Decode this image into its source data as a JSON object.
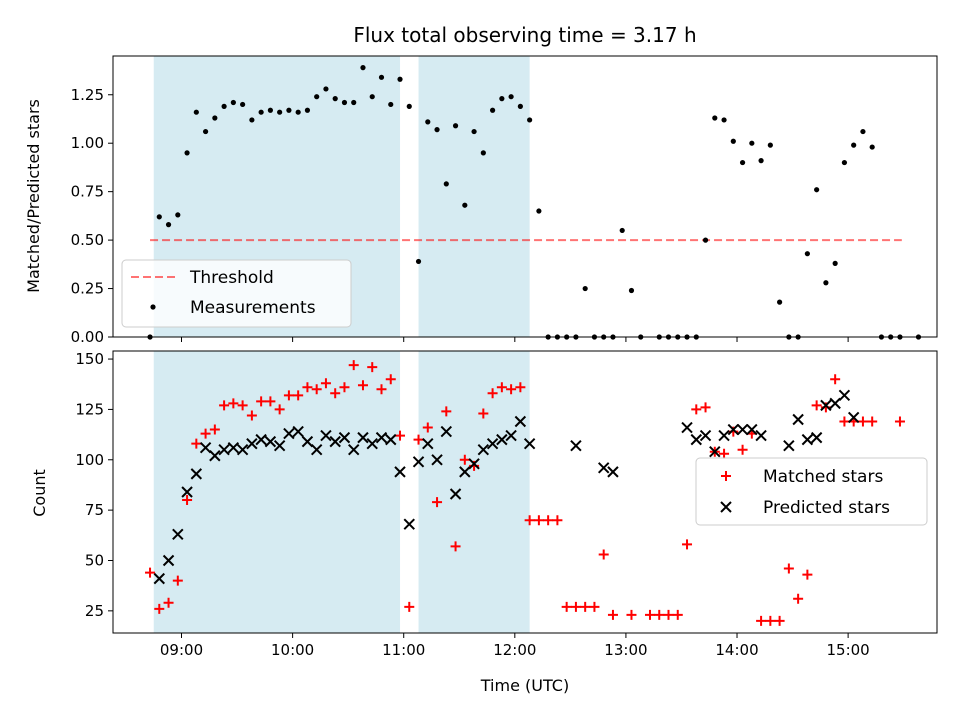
{
  "figure": {
    "title": "Flux total observing time = 3.17 h",
    "xlabel": "Time (UTC)",
    "colors": {
      "shade": "#add8e6",
      "threshold": "#ff0000",
      "matched": "#ff0000",
      "predicted": "#000000",
      "measurement": "#000000"
    }
  },
  "chart_data": [
    {
      "type": "scatter",
      "panel": "top",
      "ylabel": "Matched/Predicted stars",
      "xlim": [
        "08:23",
        "15:48"
      ],
      "ylim": [
        0,
        1.45
      ],
      "yticks": [
        "0.00",
        "0.25",
        "0.50",
        "0.75",
        "1.00",
        "1.25"
      ],
      "shaded_intervals": [
        [
          "08:45",
          "10:58"
        ],
        [
          "11:08",
          "12:08"
        ]
      ],
      "threshold": {
        "name": "Threshold",
        "value": 0.5,
        "x_range": [
          "08:43",
          "15:29"
        ],
        "style": "dashed"
      },
      "legend": {
        "placement": "lower-left",
        "entries": [
          "Threshold",
          "Measurements"
        ]
      },
      "series": [
        {
          "name": "Measurements",
          "marker": "dot",
          "points": [
            [
              "08:43",
              0.0
            ],
            [
              "08:48",
              0.62
            ],
            [
              "08:53",
              0.58
            ],
            [
              "08:58",
              0.63
            ],
            [
              "09:03",
              0.95
            ],
            [
              "09:08",
              1.16
            ],
            [
              "09:13",
              1.06
            ],
            [
              "09:18",
              1.13
            ],
            [
              "09:23",
              1.19
            ],
            [
              "09:28",
              1.21
            ],
            [
              "09:33",
              1.2
            ],
            [
              "09:38",
              1.12
            ],
            [
              "09:43",
              1.16
            ],
            [
              "09:48",
              1.17
            ],
            [
              "09:53",
              1.16
            ],
            [
              "09:58",
              1.17
            ],
            [
              "10:03",
              1.16
            ],
            [
              "10:08",
              1.17
            ],
            [
              "10:13",
              1.24
            ],
            [
              "10:18",
              1.28
            ],
            [
              "10:23",
              1.23
            ],
            [
              "10:28",
              1.21
            ],
            [
              "10:33",
              1.21
            ],
            [
              "10:38",
              1.39
            ],
            [
              "10:43",
              1.24
            ],
            [
              "10:48",
              1.34
            ],
            [
              "10:53",
              1.2
            ],
            [
              "10:58",
              1.33
            ],
            [
              "11:03",
              1.19
            ],
            [
              "11:08",
              0.39
            ],
            [
              "11:13",
              1.11
            ],
            [
              "11:18",
              1.07
            ],
            [
              "11:23",
              0.79
            ],
            [
              "11:28",
              1.09
            ],
            [
              "11:33",
              0.68
            ],
            [
              "11:38",
              1.06
            ],
            [
              "11:43",
              0.95
            ],
            [
              "11:48",
              1.17
            ],
            [
              "11:53",
              1.23
            ],
            [
              "11:58",
              1.24
            ],
            [
              "12:03",
              1.19
            ],
            [
              "12:08",
              1.12
            ],
            [
              "12:13",
              0.65
            ],
            [
              "12:18",
              0.0
            ],
            [
              "12:23",
              0.0
            ],
            [
              "12:28",
              0.0
            ],
            [
              "12:33",
              0.0
            ],
            [
              "12:38",
              0.25
            ],
            [
              "12:43",
              0.0
            ],
            [
              "12:48",
              0.0
            ],
            [
              "12:53",
              0.0
            ],
            [
              "12:58",
              0.55
            ],
            [
              "13:03",
              0.24
            ],
            [
              "13:08",
              0.0
            ],
            [
              "13:18",
              0.0
            ],
            [
              "13:23",
              0.0
            ],
            [
              "13:28",
              0.0
            ],
            [
              "13:33",
              0.0
            ],
            [
              "13:38",
              0.0
            ],
            [
              "13:43",
              0.5
            ],
            [
              "13:48",
              1.13
            ],
            [
              "13:53",
              1.12
            ],
            [
              "13:58",
              1.01
            ],
            [
              "14:03",
              0.9
            ],
            [
              "14:08",
              1.0
            ],
            [
              "14:13",
              0.91
            ],
            [
              "14:18",
              0.99
            ],
            [
              "14:23",
              0.18
            ],
            [
              "14:28",
              0.0
            ],
            [
              "14:33",
              0.0
            ],
            [
              "14:38",
              0.43
            ],
            [
              "14:43",
              0.76
            ],
            [
              "14:48",
              0.28
            ],
            [
              "14:53",
              0.38
            ],
            [
              "14:58",
              0.9
            ],
            [
              "15:03",
              0.99
            ],
            [
              "15:08",
              1.06
            ],
            [
              "15:13",
              0.98
            ],
            [
              "15:18",
              0.0
            ],
            [
              "15:23",
              0.0
            ],
            [
              "15:28",
              0.0
            ],
            [
              "15:38",
              0.0
            ]
          ]
        }
      ]
    },
    {
      "type": "scatter",
      "panel": "bottom",
      "ylabel": "Count",
      "xlabel": "Time (UTC)",
      "xlim": [
        "08:23",
        "15:48"
      ],
      "ylim": [
        14,
        154
      ],
      "yticks": [
        "25",
        "50",
        "75",
        "100",
        "125",
        "150"
      ],
      "xticks": [
        "09:00",
        "10:00",
        "11:00",
        "12:00",
        "13:00",
        "14:00",
        "15:00"
      ],
      "shaded_intervals": [
        [
          "08:45",
          "10:58"
        ],
        [
          "11:08",
          "12:08"
        ]
      ],
      "legend": {
        "placement": "center-right",
        "entries": [
          "Matched stars",
          "Predicted stars"
        ]
      },
      "series": [
        {
          "name": "Matched stars",
          "marker": "plus",
          "points": [
            [
              "08:43",
              44
            ],
            [
              "08:48",
              26
            ],
            [
              "08:53",
              29
            ],
            [
              "08:58",
              40
            ],
            [
              "09:03",
              80
            ],
            [
              "09:08",
              108
            ],
            [
              "09:13",
              113
            ],
            [
              "09:18",
              115
            ],
            [
              "09:23",
              127
            ],
            [
              "09:28",
              128
            ],
            [
              "09:33",
              127
            ],
            [
              "09:38",
              122
            ],
            [
              "09:43",
              129
            ],
            [
              "09:48",
              129
            ],
            [
              "09:53",
              125
            ],
            [
              "09:58",
              132
            ],
            [
              "10:03",
              132
            ],
            [
              "10:08",
              136
            ],
            [
              "10:13",
              135
            ],
            [
              "10:18",
              138
            ],
            [
              "10:23",
              133
            ],
            [
              "10:28",
              136
            ],
            [
              "10:33",
              147
            ],
            [
              "10:38",
              137
            ],
            [
              "10:43",
              146
            ],
            [
              "10:48",
              135
            ],
            [
              "10:53",
              140
            ],
            [
              "10:58",
              112
            ],
            [
              "11:03",
              27
            ],
            [
              "11:08",
              110
            ],
            [
              "11:13",
              116
            ],
            [
              "11:18",
              79
            ],
            [
              "11:23",
              124
            ],
            [
              "11:28",
              57
            ],
            [
              "11:33",
              100
            ],
            [
              "11:38",
              97
            ],
            [
              "11:43",
              123
            ],
            [
              "11:48",
              133
            ],
            [
              "11:53",
              136
            ],
            [
              "11:58",
              135
            ],
            [
              "12:03",
              136
            ],
            [
              "12:08",
              70
            ],
            [
              "12:13",
              70
            ],
            [
              "12:18",
              70
            ],
            [
              "12:23",
              70
            ],
            [
              "12:28",
              27
            ],
            [
              "12:33",
              27
            ],
            [
              "12:38",
              27
            ],
            [
              "12:43",
              27
            ],
            [
              "12:48",
              53
            ],
            [
              "12:53",
              23
            ],
            [
              "13:03",
              23
            ],
            [
              "13:13",
              23
            ],
            [
              "13:18",
              23
            ],
            [
              "13:23",
              23
            ],
            [
              "13:28",
              23
            ],
            [
              "13:33",
              58
            ],
            [
              "13:38",
              125
            ],
            [
              "13:43",
              126
            ],
            [
              "13:48",
              104
            ],
            [
              "13:53",
              103
            ],
            [
              "13:58",
              114
            ],
            [
              "14:03",
              105
            ],
            [
              "14:08",
              113
            ],
            [
              "14:13",
              20
            ],
            [
              "14:18",
              20
            ],
            [
              "14:23",
              20
            ],
            [
              "14:28",
              46
            ],
            [
              "14:33",
              31
            ],
            [
              "14:38",
              43
            ],
            [
              "14:43",
              127
            ],
            [
              "14:48",
              126
            ],
            [
              "14:53",
              140
            ],
            [
              "14:58",
              119
            ],
            [
              "15:03",
              119
            ],
            [
              "15:08",
              119
            ],
            [
              "15:13",
              119
            ],
            [
              "15:28",
              119
            ]
          ]
        },
        {
          "name": "Predicted stars",
          "marker": "x",
          "points": [
            [
              "08:48",
              41
            ],
            [
              "08:53",
              50
            ],
            [
              "08:58",
              63
            ],
            [
              "09:03",
              84
            ],
            [
              "09:08",
              93
            ],
            [
              "09:13",
              106
            ],
            [
              "09:18",
              102
            ],
            [
              "09:23",
              105
            ],
            [
              "09:28",
              106
            ],
            [
              "09:33",
              105
            ],
            [
              "09:38",
              108
            ],
            [
              "09:43",
              110
            ],
            [
              "09:48",
              109
            ],
            [
              "09:53",
              107
            ],
            [
              "09:58",
              113
            ],
            [
              "10:03",
              114
            ],
            [
              "10:08",
              109
            ],
            [
              "10:13",
              105
            ],
            [
              "10:18",
              112
            ],
            [
              "10:23",
              109
            ],
            [
              "10:28",
              111
            ],
            [
              "10:33",
              105
            ],
            [
              "10:38",
              111
            ],
            [
              "10:43",
              108
            ],
            [
              "10:48",
              111
            ],
            [
              "10:53",
              110
            ],
            [
              "10:58",
              94
            ],
            [
              "11:03",
              68
            ],
            [
              "11:08",
              99
            ],
            [
              "11:13",
              108
            ],
            [
              "11:18",
              100
            ],
            [
              "11:23",
              114
            ],
            [
              "11:28",
              83
            ],
            [
              "11:33",
              94
            ],
            [
              "11:38",
              98
            ],
            [
              "11:43",
              105
            ],
            [
              "11:48",
              108
            ],
            [
              "11:53",
              110
            ],
            [
              "11:58",
              112
            ],
            [
              "12:03",
              119
            ],
            [
              "12:08",
              108
            ],
            [
              "12:33",
              107
            ],
            [
              "12:48",
              96
            ],
            [
              "12:53",
              94
            ],
            [
              "13:33",
              116
            ],
            [
              "13:38",
              110
            ],
            [
              "13:43",
              112
            ],
            [
              "13:48",
              104
            ],
            [
              "13:53",
              112
            ],
            [
              "13:58",
              115
            ],
            [
              "14:03",
              115
            ],
            [
              "14:08",
              115
            ],
            [
              "14:13",
              112
            ],
            [
              "14:28",
              107
            ],
            [
              "14:33",
              120
            ],
            [
              "14:38",
              110
            ],
            [
              "14:43",
              111
            ],
            [
              "14:48",
              127
            ],
            [
              "14:53",
              128
            ],
            [
              "14:58",
              132
            ],
            [
              "15:03",
              121
            ]
          ]
        }
      ]
    }
  ]
}
